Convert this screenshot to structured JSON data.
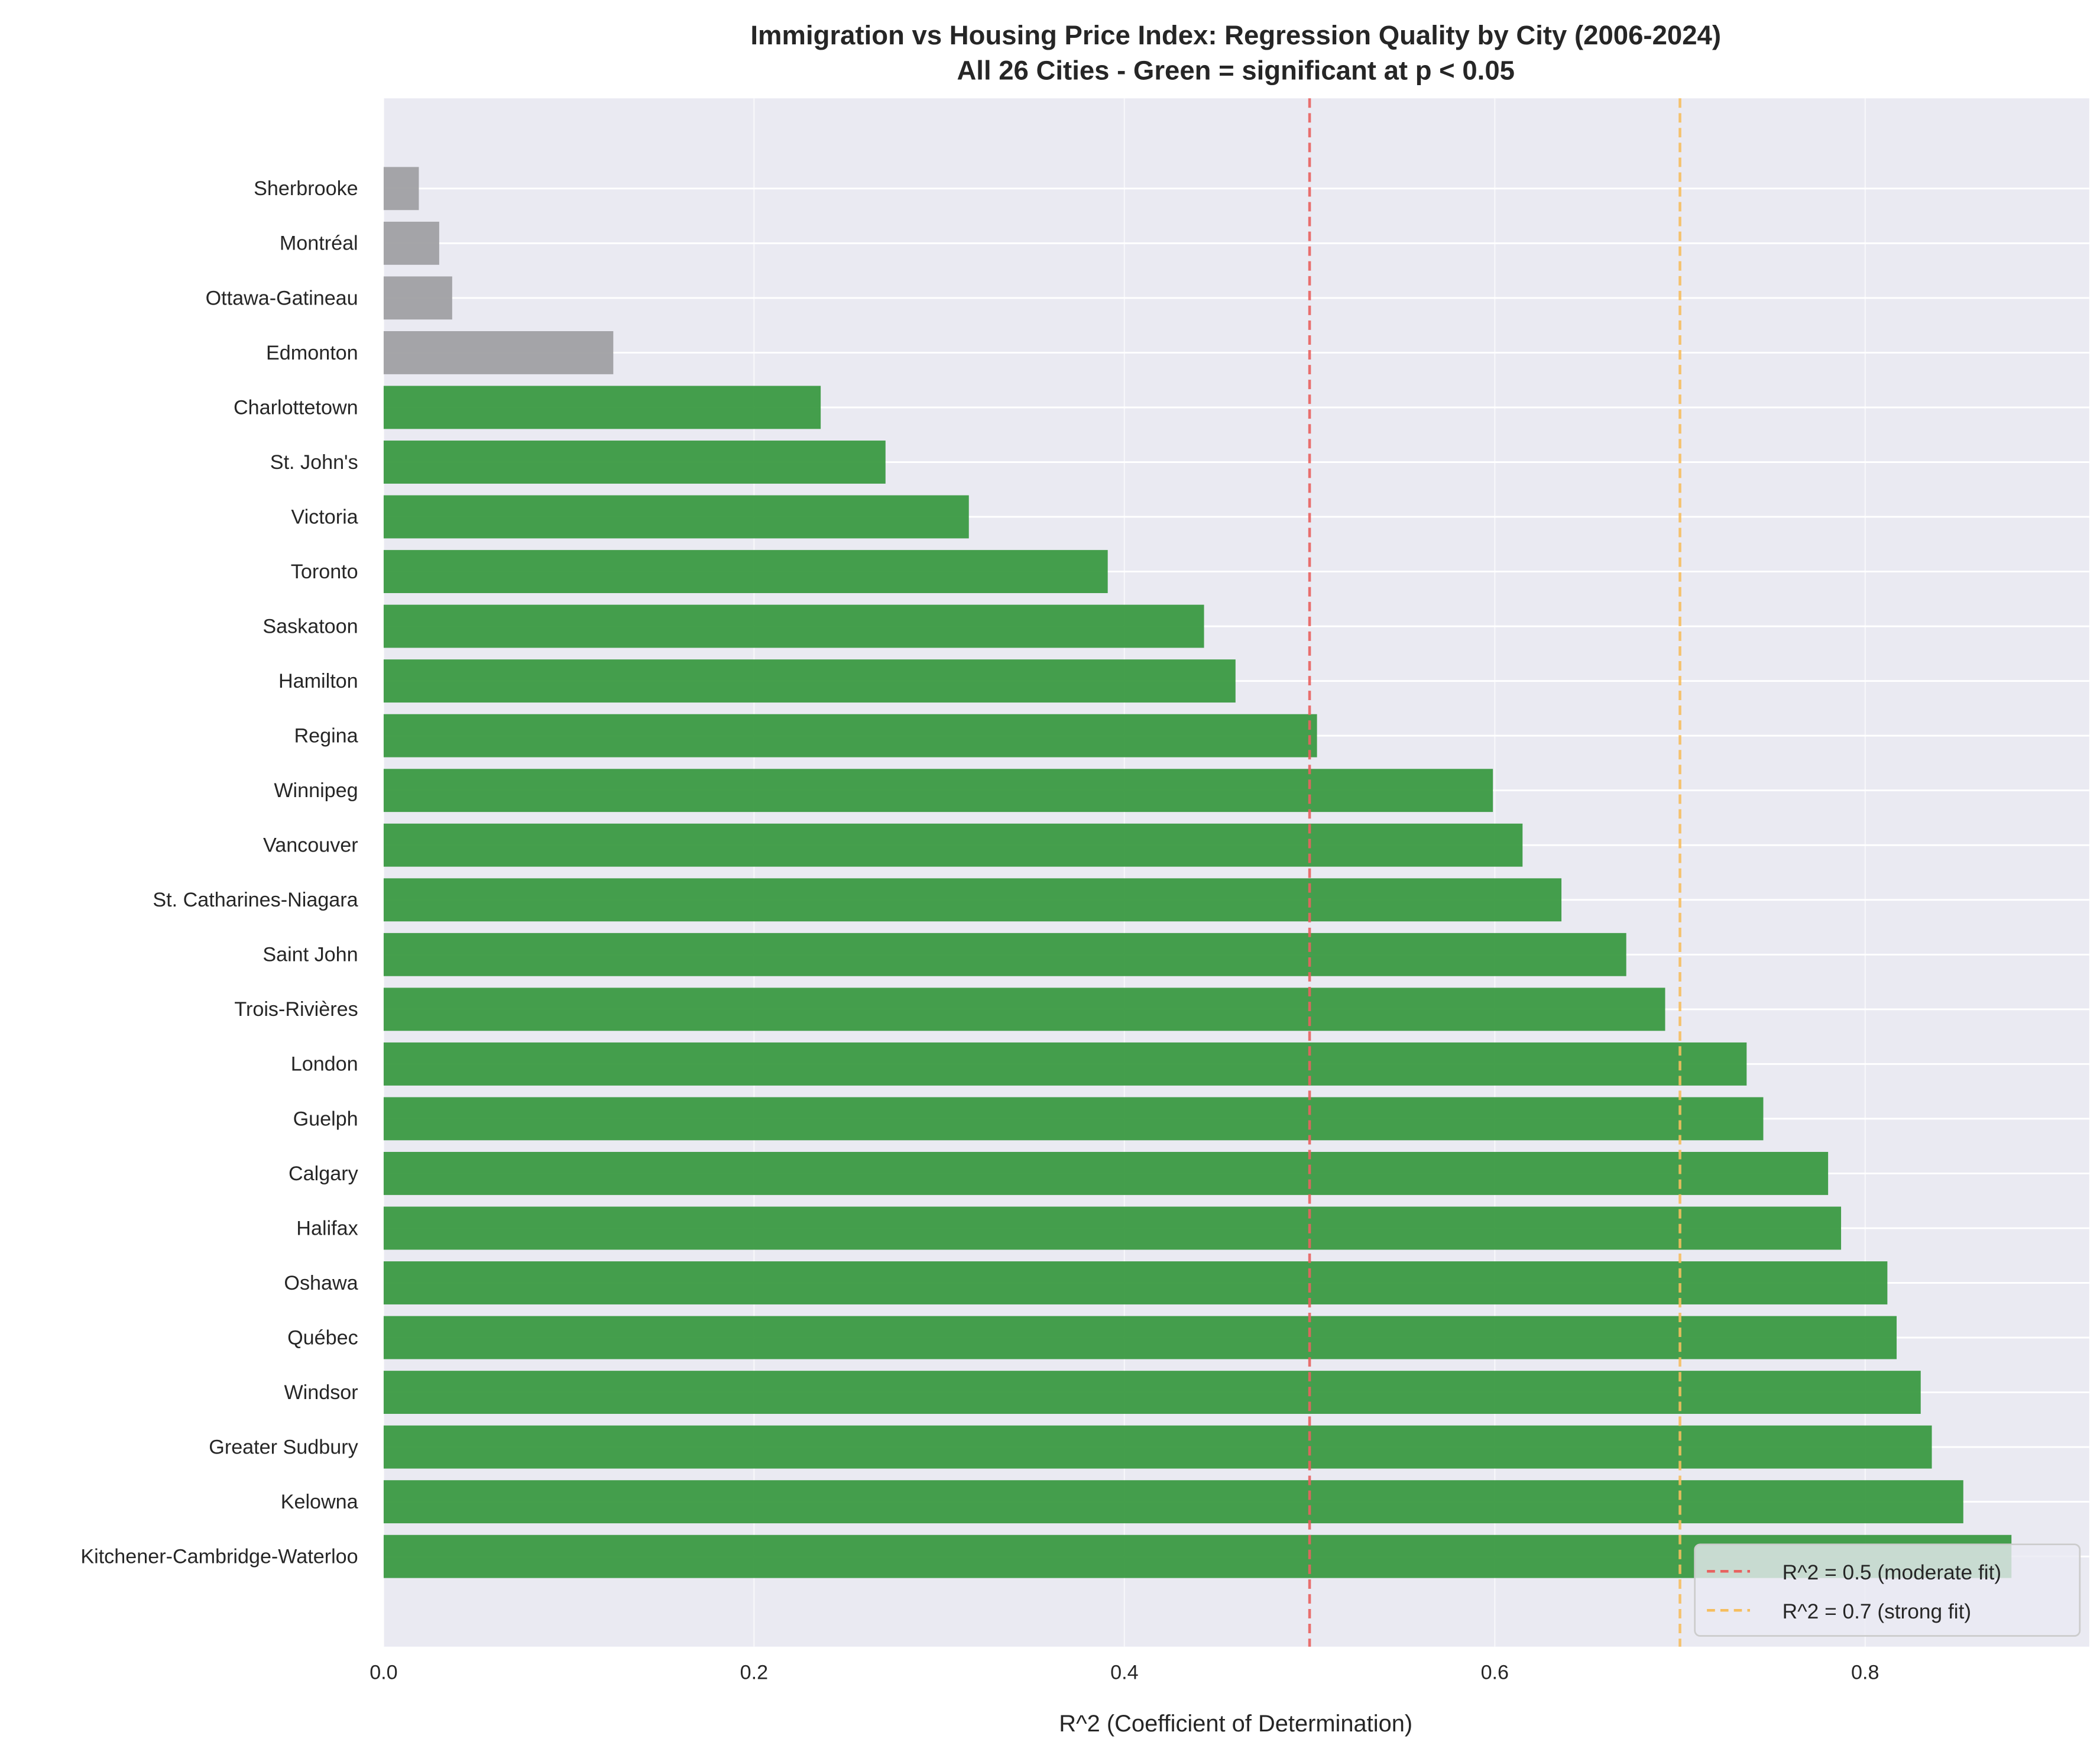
{
  "chart_data": {
    "type": "bar",
    "orientation": "horizontal",
    "title": "Immigration vs Housing Price Index: Regression Quality by City (2006-2024)",
    "subtitle": "All 26 Cities - Green = significant at p < 0.05",
    "xlabel": "R^2 (Coefficient of Determination)",
    "ylabel": "",
    "xlim": [
      0,
      0.921
    ],
    "xticks": [
      0.0,
      0.2,
      0.4,
      0.6,
      0.8
    ],
    "xtick_labels": [
      "0.0",
      "0.2",
      "0.4",
      "0.6",
      "0.8"
    ],
    "grid": true,
    "categories": [
      "Sherbrooke",
      "Montréal",
      "Ottawa-Gatineau",
      "Edmonton",
      "Charlottetown",
      "St. John's",
      "Victoria",
      "Toronto",
      "Saskatoon",
      "Hamilton",
      "Regina",
      "Winnipeg",
      "Vancouver",
      "St. Catharines-Niagara",
      "Saint John",
      "Trois-Rivières",
      "London",
      "Guelph",
      "Calgary",
      "Halifax",
      "Oshawa",
      "Québec",
      "Windsor",
      "Greater Sudbury",
      "Kelowna",
      "Kitchener-Cambridge-Waterloo"
    ],
    "values": [
      0.019,
      0.03,
      0.037,
      0.124,
      0.236,
      0.271,
      0.316,
      0.391,
      0.443,
      0.46,
      0.504,
      0.599,
      0.615,
      0.636,
      0.671,
      0.692,
      0.736,
      0.745,
      0.78,
      0.787,
      0.812,
      0.817,
      0.83,
      0.836,
      0.853,
      0.879
    ],
    "significant": [
      false,
      false,
      false,
      false,
      true,
      true,
      true,
      true,
      true,
      true,
      true,
      true,
      true,
      true,
      true,
      true,
      true,
      true,
      true,
      true,
      true,
      true,
      true,
      true,
      true,
      true
    ],
    "colors": {
      "significant": "#3b9a42",
      "not_significant": "#a0a0a3",
      "background": "#eaeaf2",
      "moderate_line": "#e8625f",
      "strong_line": "#f6be5e"
    },
    "reference_lines": [
      {
        "value": 0.5,
        "label": "R^2 = 0.5 (moderate fit)",
        "color": "#e8625f"
      },
      {
        "value": 0.7,
        "label": "R^2 = 0.7 (strong fit)",
        "color": "#f6be5e"
      }
    ],
    "legend_position": "lower-right"
  }
}
